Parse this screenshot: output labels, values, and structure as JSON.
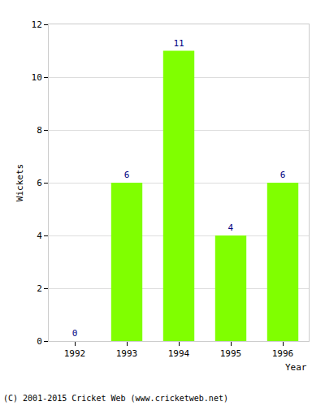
{
  "chart_data": {
    "type": "bar",
    "categories": [
      "1992",
      "1993",
      "1994",
      "1995",
      "1996"
    ],
    "values": [
      0,
      6,
      11,
      4,
      6
    ],
    "color": "#80ff00",
    "x_label": "Year",
    "y_label": "Wickets",
    "ylim": [
      0,
      12
    ],
    "yticks": [
      0,
      2,
      4,
      6,
      8,
      10,
      12
    ],
    "grid": true,
    "data_labels": true,
    "annotations": [
      "(C) 2001-2015 Cricket Web (www.cricketweb.net)"
    ]
  }
}
